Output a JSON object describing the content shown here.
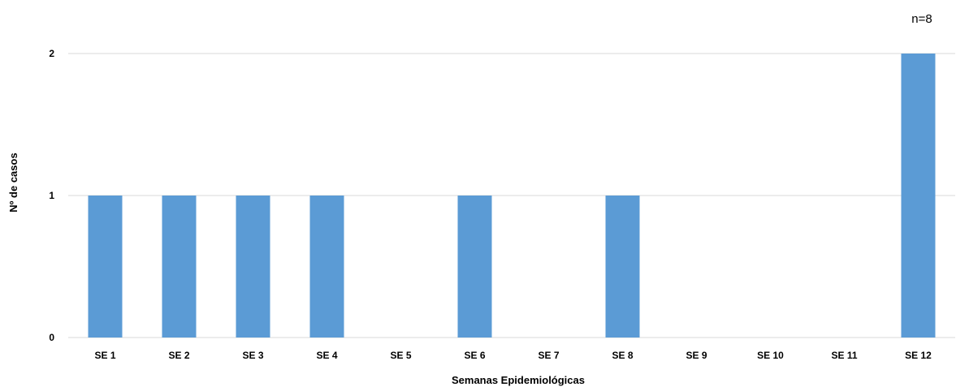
{
  "chart_data": {
    "type": "bar",
    "categories": [
      "SE 1",
      "SE 2",
      "SE 3",
      "SE 4",
      "SE 5",
      "SE 6",
      "SE 7",
      "SE 8",
      "SE 9",
      "SE 10",
      "SE 11",
      "SE 12"
    ],
    "values": [
      1,
      1,
      1,
      1,
      0,
      1,
      0,
      1,
      0,
      0,
      0,
      2
    ],
    "title": "",
    "annotation": "n=8",
    "xlabel": "Semanas Epidemiológicas",
    "ylabel": "Nº de casos",
    "ylim": [
      0,
      2
    ],
    "yticks": [
      "0",
      "1",
      "2"
    ],
    "grid": true,
    "legend": "none",
    "bar_color": "#5B9BD5",
    "grid_color": "#D9D9D9"
  }
}
